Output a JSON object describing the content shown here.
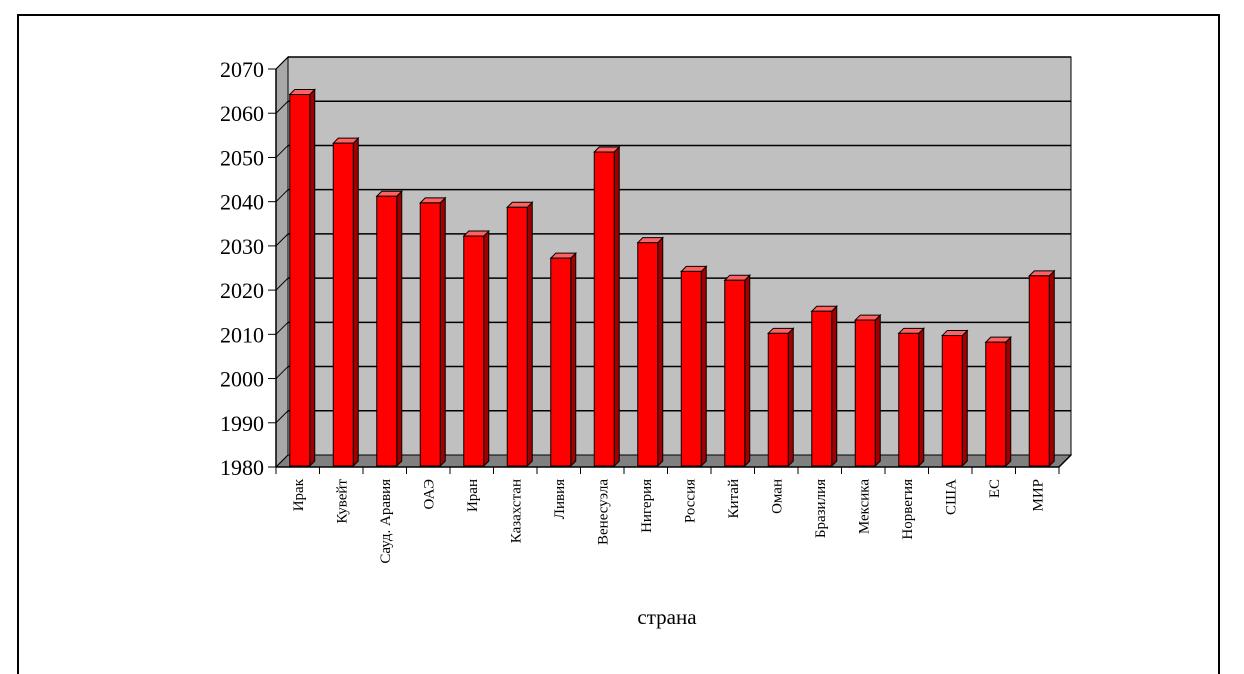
{
  "chart_data": {
    "type": "bar",
    "xlabel": "страна",
    "ylabel": "",
    "ylim": [
      1980,
      2070
    ],
    "yticks": [
      1980,
      1990,
      2000,
      2010,
      2020,
      2030,
      2040,
      2050,
      2060,
      2070
    ],
    "grid": true,
    "categories": [
      "Ирак",
      "Кувейт",
      "Сауд. Аравия",
      "ОАЭ",
      "Иран",
      "Казахстан",
      "Ливия",
      "Венесуэла",
      "Нигерия",
      "Россия",
      "Китай",
      "Оман",
      "Бразилия",
      "Мексика",
      "Норвегия",
      "США",
      "ЕС",
      "МИР"
    ],
    "values": [
      2064,
      2053,
      2041,
      2039.5,
      2032,
      2038.5,
      2027,
      2051,
      2030.5,
      2024,
      2022,
      2010,
      2015,
      2013,
      2010,
      2009.5,
      2008,
      2023
    ],
    "colors": {
      "bar": "#ff0000",
      "bar_side": "#a00000",
      "bar_top": "#ff6060",
      "plot_bg": "#c0c0c0",
      "floor": "#808080"
    }
  }
}
